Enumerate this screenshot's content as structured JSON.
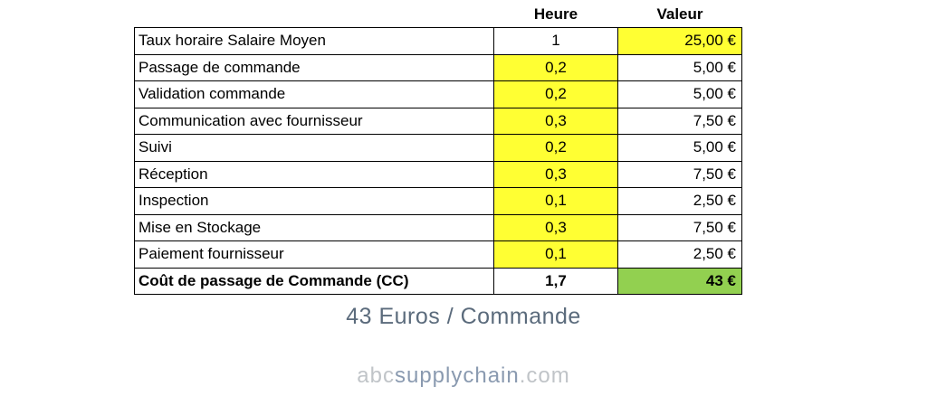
{
  "table": {
    "columns": [
      "Heure",
      "Valeur"
    ],
    "rows": [
      [
        "Taux horaire Salaire Moyen",
        "1",
        "25,00 €"
      ],
      [
        "Passage de commande",
        "0,2",
        "5,00 €"
      ],
      [
        "Validation commande",
        "0,2",
        "5,00 €"
      ],
      [
        "Communication avec fournisseur",
        "0,3",
        "7,50 €"
      ],
      [
        "Suivi",
        "0,2",
        "5,00 €"
      ],
      [
        "Réception",
        "0,3",
        "7,50 €"
      ],
      [
        "Inspection",
        "0,1",
        "2,50 €"
      ],
      [
        "Mise en Stockage",
        "0,3",
        "7,50 €"
      ],
      [
        "Paiement fournisseur",
        "0,1",
        "2,50 €"
      ],
      [
        "Coût de passage de Commande (CC)",
        "1,7",
        "43 €"
      ]
    ]
  },
  "caption": "43 Euros / Commande",
  "brand": {
    "prefix": "abc",
    "main": "supplychain",
    "suffix": ".com"
  }
}
